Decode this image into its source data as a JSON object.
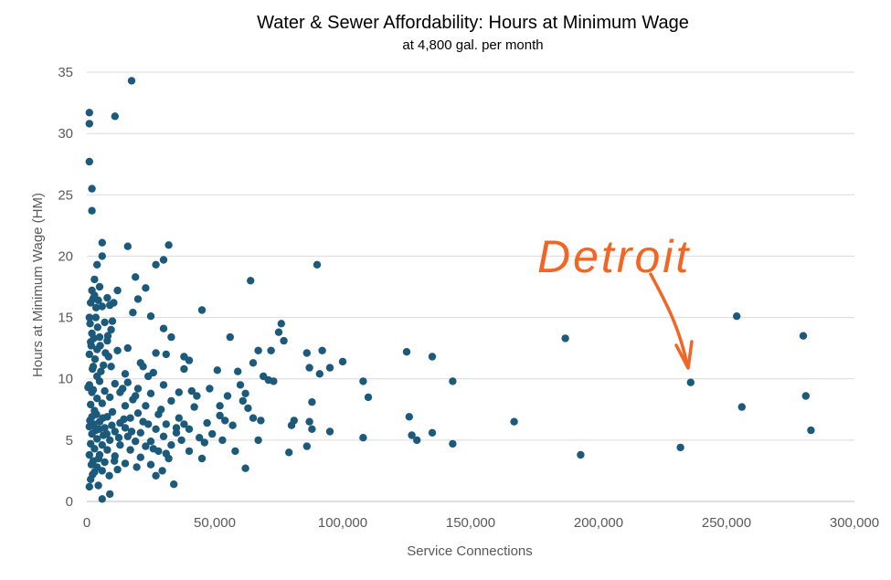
{
  "chart_data": {
    "type": "scatter",
    "title": "Water & Sewer Affordability: Hours at Minimum Wage",
    "subtitle": "at 4,800 gal. per month",
    "xlabel": "Service Connections",
    "ylabel": "Hours at Minimum Wage (HM)",
    "xlim": [
      0,
      300000
    ],
    "ylim": [
      0,
      35
    ],
    "x_ticks": [
      0,
      50000,
      100000,
      150000,
      200000,
      250000,
      300000
    ],
    "x_tick_labels": [
      "0",
      "50,000",
      "100,000",
      "150,000",
      "200,000",
      "250,000",
      "300,000"
    ],
    "y_ticks": [
      0,
      5,
      10,
      15,
      20,
      25,
      30,
      35
    ],
    "y_tick_labels": [
      "0",
      "5",
      "10",
      "15",
      "20",
      "25",
      "30",
      "35"
    ],
    "grid": "horizontal",
    "point_color": "#1b5a7a",
    "annotation": {
      "text": "Detroit",
      "color": "#f26522",
      "target": [
        236000,
        9.7
      ]
    },
    "points": [
      [
        17500,
        34.3
      ],
      [
        1000,
        31.7
      ],
      [
        11000,
        31.4
      ],
      [
        1000,
        30.8
      ],
      [
        1000,
        27.7
      ],
      [
        2000,
        25.5
      ],
      [
        2000,
        23.7
      ],
      [
        6000,
        21.1
      ],
      [
        16000,
        20.8
      ],
      [
        32000,
        20.9
      ],
      [
        6000,
        20.0
      ],
      [
        30000,
        19.7
      ],
      [
        27000,
        19.3
      ],
      [
        4000,
        19.3
      ],
      [
        90000,
        19.3
      ],
      [
        19000,
        18.3
      ],
      [
        3000,
        18.1
      ],
      [
        5000,
        17.5
      ],
      [
        23000,
        17.4
      ],
      [
        64000,
        18.0
      ],
      [
        2000,
        17.2
      ],
      [
        12000,
        17.2
      ],
      [
        3000,
        16.8
      ],
      [
        8000,
        16.6
      ],
      [
        4500,
        16.4
      ],
      [
        20000,
        16.5
      ],
      [
        1500,
        16.2
      ],
      [
        6000,
        15.9
      ],
      [
        9000,
        16.0
      ],
      [
        45000,
        15.6
      ],
      [
        18000,
        15.4
      ],
      [
        25000,
        15.1
      ],
      [
        1000,
        15.0
      ],
      [
        3500,
        15.0
      ],
      [
        7000,
        14.6
      ],
      [
        10000,
        14.7
      ],
      [
        76000,
        14.5
      ],
      [
        30000,
        14.1
      ],
      [
        75000,
        13.8
      ],
      [
        9500,
        14.0
      ],
      [
        2000,
        13.7
      ],
      [
        5000,
        13.4
      ],
      [
        56000,
        13.4
      ],
      [
        187000,
        13.3
      ],
      [
        77000,
        13.1
      ],
      [
        1500,
        13.0
      ],
      [
        8000,
        13.1
      ],
      [
        33000,
        13.4
      ],
      [
        280000,
        13.5
      ],
      [
        254000,
        15.1
      ],
      [
        67000,
        12.3
      ],
      [
        72000,
        12.3
      ],
      [
        92000,
        12.3
      ],
      [
        125000,
        12.2
      ],
      [
        86000,
        12.1
      ],
      [
        4000,
        12.4
      ],
      [
        12000,
        12.3
      ],
      [
        16000,
        12.5
      ],
      [
        27000,
        12.1
      ],
      [
        31000,
        12.0
      ],
      [
        1000,
        12.0
      ],
      [
        135000,
        11.8
      ],
      [
        38000,
        11.8
      ],
      [
        40000,
        11.5
      ],
      [
        65000,
        11.3
      ],
      [
        100000,
        11.4
      ],
      [
        6500,
        11.1
      ],
      [
        21000,
        11.3
      ],
      [
        2500,
        11.0
      ],
      [
        9500,
        11.0
      ],
      [
        22000,
        11.0
      ],
      [
        51000,
        10.7
      ],
      [
        59000,
        10.6
      ],
      [
        87000,
        10.9
      ],
      [
        95000,
        10.9
      ],
      [
        15000,
        10.4
      ],
      [
        26000,
        10.5
      ],
      [
        38000,
        10.8
      ],
      [
        69000,
        10.2
      ],
      [
        73000,
        9.8
      ],
      [
        91000,
        10.4
      ],
      [
        108000,
        9.8
      ],
      [
        143000,
        9.8
      ],
      [
        236000,
        9.7
      ],
      [
        1000,
        9.5
      ],
      [
        5000,
        9.8
      ],
      [
        11000,
        9.6
      ],
      [
        16000,
        9.7
      ],
      [
        30000,
        9.5
      ],
      [
        60000,
        9.5
      ],
      [
        20000,
        9.2
      ],
      [
        41000,
        9.0
      ],
      [
        48000,
        9.2
      ],
      [
        7000,
        9.0
      ],
      [
        2000,
        8.9
      ],
      [
        13000,
        8.9
      ],
      [
        25000,
        8.8
      ],
      [
        36000,
        8.9
      ],
      [
        55000,
        8.6
      ],
      [
        110000,
        8.5
      ],
      [
        281000,
        8.6
      ],
      [
        4000,
        8.4
      ],
      [
        9000,
        8.5
      ],
      [
        18000,
        8.3
      ],
      [
        33000,
        8.2
      ],
      [
        61000,
        8.2
      ],
      [
        88000,
        8.1
      ],
      [
        1500,
        7.9
      ],
      [
        6000,
        8.0
      ],
      [
        15000,
        7.8
      ],
      [
        23000,
        7.8
      ],
      [
        42000,
        7.7
      ],
      [
        63000,
        7.6
      ],
      [
        256000,
        7.7
      ],
      [
        3000,
        7.4
      ],
      [
        10000,
        7.3
      ],
      [
        20000,
        7.2
      ],
      [
        28000,
        7.1
      ],
      [
        52000,
        7.0
      ],
      [
        2000,
        6.9
      ],
      [
        8000,
        6.9
      ],
      [
        17000,
        6.8
      ],
      [
        36000,
        6.8
      ],
      [
        126000,
        6.9
      ],
      [
        81000,
        6.6
      ],
      [
        87000,
        6.5
      ],
      [
        167000,
        6.5
      ],
      [
        5000,
        6.5
      ],
      [
        13000,
        6.4
      ],
      [
        24000,
        6.3
      ],
      [
        31000,
        6.3
      ],
      [
        47000,
        6.4
      ],
      [
        57000,
        6.2
      ],
      [
        80000,
        6.2
      ],
      [
        1000,
        6.1
      ],
      [
        7000,
        6.0
      ],
      [
        15000,
        6.0
      ],
      [
        27000,
        5.9
      ],
      [
        40000,
        5.9
      ],
      [
        88000,
        5.9
      ],
      [
        95000,
        5.7
      ],
      [
        3500,
        5.8
      ],
      [
        11000,
        5.7
      ],
      [
        21000,
        5.6
      ],
      [
        35000,
        5.6
      ],
      [
        49000,
        5.5
      ],
      [
        2000,
        5.5
      ],
      [
        6500,
        5.4
      ],
      [
        16000,
        5.3
      ],
      [
        30000,
        5.3
      ],
      [
        44000,
        5.2
      ],
      [
        108000,
        5.2
      ],
      [
        127000,
        5.4
      ],
      [
        135000,
        5.6
      ],
      [
        283000,
        5.8
      ],
      [
        4000,
        5.1
      ],
      [
        9000,
        5.0
      ],
      [
        19000,
        4.9
      ],
      [
        25000,
        4.9
      ],
      [
        37000,
        5.0
      ],
      [
        53000,
        5.0
      ],
      [
        67000,
        5.0
      ],
      [
        129000,
        5.0
      ],
      [
        143000,
        4.7
      ],
      [
        1500,
        4.7
      ],
      [
        6000,
        4.6
      ],
      [
        13000,
        4.6
      ],
      [
        23000,
        4.5
      ],
      [
        33000,
        4.6
      ],
      [
        86000,
        4.5
      ],
      [
        3000,
        4.3
      ],
      [
        8000,
        4.2
      ],
      [
        17000,
        4.2
      ],
      [
        28000,
        4.1
      ],
      [
        40000,
        4.1
      ],
      [
        58000,
        4.1
      ],
      [
        79000,
        4.0
      ],
      [
        232000,
        4.4
      ],
      [
        193000,
        3.8
      ],
      [
        1000,
        3.8
      ],
      [
        5000,
        3.8
      ],
      [
        11000,
        3.7
      ],
      [
        21000,
        3.6
      ],
      [
        32000,
        3.5
      ],
      [
        45000,
        3.5
      ],
      [
        2500,
        3.3
      ],
      [
        7000,
        3.2
      ],
      [
        15000,
        3.1
      ],
      [
        25000,
        3.0
      ],
      [
        4000,
        2.8
      ],
      [
        62000,
        2.7
      ],
      [
        12000,
        2.6
      ],
      [
        3000,
        2.4
      ],
      [
        6000,
        2.5
      ],
      [
        27000,
        2.1
      ],
      [
        1500,
        1.8
      ],
      [
        34000,
        1.4
      ],
      [
        4500,
        1.3
      ],
      [
        1000,
        1.2
      ],
      [
        9000,
        0.6
      ],
      [
        6000,
        0.2
      ],
      [
        500,
        9.3
      ],
      [
        2500,
        9.1
      ],
      [
        4000,
        10.2
      ],
      [
        5500,
        10.6
      ],
      [
        8500,
        11.8
      ],
      [
        14000,
        9.2
      ],
      [
        19000,
        8.6
      ],
      [
        24000,
        10.2
      ],
      [
        29000,
        7.5
      ],
      [
        35000,
        6.0
      ],
      [
        43000,
        8.6
      ],
      [
        52000,
        7.8
      ],
      [
        62000,
        8.8
      ],
      [
        68000,
        6.6
      ],
      [
        71000,
        9.9
      ],
      [
        1200,
        6.6
      ],
      [
        2800,
        6.3
      ],
      [
        3800,
        7.1
      ],
      [
        4800,
        5.9
      ],
      [
        6300,
        6.8
      ],
      [
        7800,
        5.5
      ],
      [
        9800,
        6.2
      ],
      [
        12500,
        5.2
      ],
      [
        14500,
        6.7
      ],
      [
        17500,
        5.7
      ],
      [
        22000,
        6.5
      ],
      [
        26000,
        4.3
      ],
      [
        31000,
        3.9
      ],
      [
        38000,
        6.3
      ],
      [
        46000,
        4.8
      ],
      [
        54000,
        6.6
      ],
      [
        65000,
        6.8
      ],
      [
        2200,
        10.8
      ],
      [
        3200,
        11.6
      ],
      [
        1700,
        12.7
      ],
      [
        2700,
        13.3
      ],
      [
        4200,
        14.2
      ],
      [
        1300,
        14.5
      ],
      [
        8200,
        13.5
      ],
      [
        3600,
        15.8
      ],
      [
        2400,
        16.5
      ],
      [
        10500,
        16.2
      ],
      [
        5200,
        12.7
      ],
      [
        7300,
        12.1
      ],
      [
        4600,
        3.5
      ],
      [
        2300,
        2.2
      ],
      [
        1800,
        3.0
      ],
      [
        8800,
        2.1
      ],
      [
        10800,
        3.3
      ],
      [
        19500,
        2.8
      ],
      [
        29500,
        2.5
      ]
    ]
  }
}
